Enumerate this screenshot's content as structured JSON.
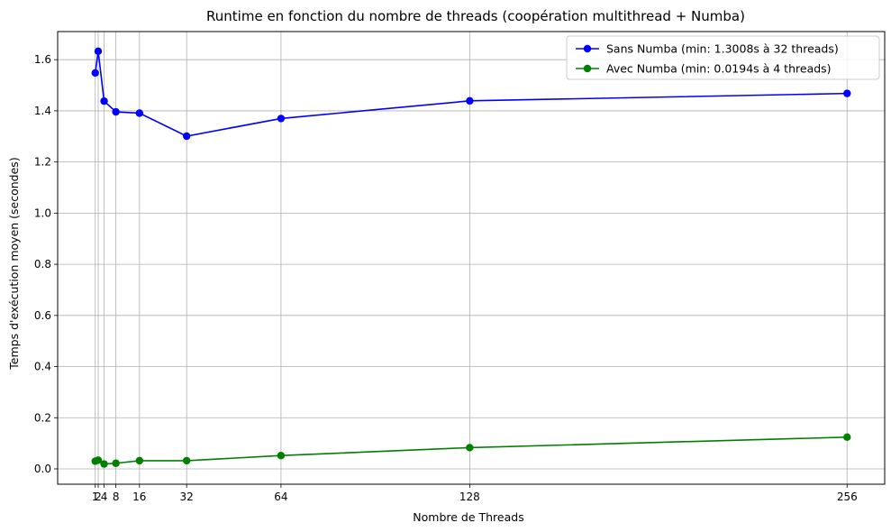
{
  "chart_data": {
    "type": "line",
    "title": "Runtime en fonction du nombre de threads (coopération multithread + Numba)",
    "xlabel": "Nombre de Threads",
    "ylabel": "Temps d'exécution moyen (secondes)",
    "x": [
      1,
      2,
      4,
      8,
      16,
      32,
      64,
      128,
      256
    ],
    "xticks": [
      1,
      2,
      4,
      8,
      16,
      32,
      64,
      128,
      256
    ],
    "xticklabels": [
      "1",
      "2",
      "4",
      "8",
      "16",
      "32",
      "64",
      "128",
      "256"
    ],
    "yticks": [
      0.0,
      0.2,
      0.4,
      0.6,
      0.8,
      1.0,
      1.2,
      1.4,
      1.6
    ],
    "yticklabels": [
      "0.0",
      "0.2",
      "0.4",
      "0.6",
      "0.8",
      "1.0",
      "1.2",
      "1.4",
      "1.6"
    ],
    "xlim": [
      -11.75,
      268.75
    ],
    "ylim": [
      -0.06,
      1.71
    ],
    "grid": true,
    "legend_position": "top-right",
    "series": [
      {
        "name": "Sans Numba (min: 1.3008s à 32 threads)",
        "color": "#0000ff",
        "values": [
          1.548,
          1.633,
          1.438,
          1.396,
          1.391,
          1.301,
          1.37,
          1.439,
          1.468
        ]
      },
      {
        "name": "Avec Numba (min: 0.0194s à 4 threads)",
        "color": "#008000",
        "values": [
          0.03,
          0.034,
          0.019,
          0.022,
          0.032,
          0.032,
          0.052,
          0.083,
          0.124
        ]
      }
    ]
  }
}
